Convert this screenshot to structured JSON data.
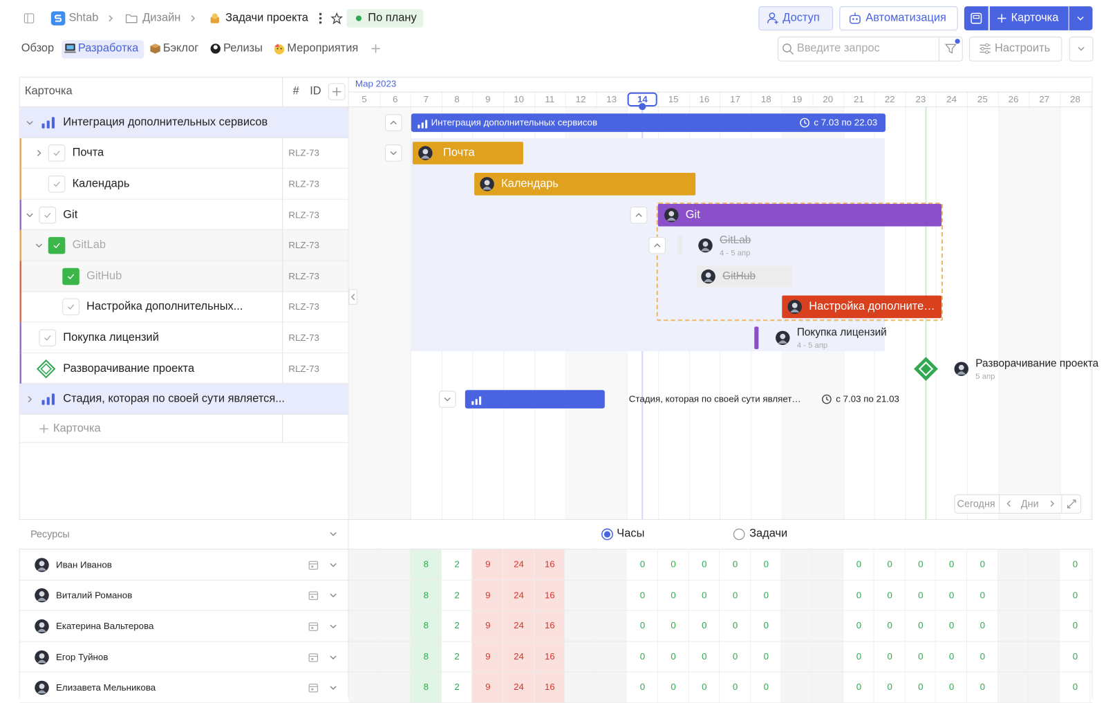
{
  "header": {
    "breadcrumbs": [
      "Shtab",
      "Дизайн",
      "Задачи проекта"
    ],
    "status": "По плану",
    "buttons": {
      "access": "Доступ",
      "automation": "Автоматизация",
      "card": "Карточка"
    }
  },
  "tabs": [
    "Обзор",
    "Разработка",
    "Бэклог",
    "Релизы",
    "Мероприятия"
  ],
  "search_placeholder": "Введите запрос",
  "configure": "Настроить",
  "table": {
    "columns": [
      "Карточка",
      "#",
      "ID"
    ],
    "rows": [
      {
        "title": "Интеграция дополнительных сервисов"
      },
      {
        "title": "Почта",
        "id": "RLZ-73"
      },
      {
        "title": "Календарь",
        "id": "RLZ-73"
      },
      {
        "title": "Git",
        "id": "RLZ-73"
      },
      {
        "title": "GitLab",
        "id": "RLZ-73"
      },
      {
        "title": "GitHub",
        "id": "RLZ-73"
      },
      {
        "title": "Настройка дополнительных...",
        "id": "RLZ-73"
      },
      {
        "title": "Покупка лицензий",
        "id": "RLZ-73"
      },
      {
        "title": "Разворачивание проекта",
        "id": "RLZ-73"
      },
      {
        "title": "Стадия, которая по своей сути является..."
      }
    ],
    "add_card": "Карточка"
  },
  "timeline": {
    "month": "Мар 2023",
    "days": [
      5,
      6,
      7,
      8,
      9,
      10,
      11,
      12,
      13,
      14,
      15,
      16,
      17,
      18,
      19,
      20,
      21,
      22,
      23,
      24,
      25,
      26,
      27,
      28
    ],
    "bars": [
      {
        "title": "Интеграция дополнительных сервисов",
        "dates": "с 7.03 по 22.03"
      },
      {
        "title": "Почта"
      },
      {
        "title": "Календарь"
      },
      {
        "title": "Git"
      },
      {
        "title": "GitLab",
        "dates": "4 - 5 апр"
      },
      {
        "title": "GitHub"
      },
      {
        "title": "Настройка дополните…"
      },
      {
        "title": "Покупка лицензий",
        "dates": "4 - 5 апр"
      },
      {
        "title": "Разворачивание проекта",
        "dates": "5 апр"
      },
      {
        "title": "Стадия, которая по своей сути являет…",
        "dates": "с 7.03 по 21.03"
      }
    ],
    "controls": {
      "today": "Сегодня",
      "scale": "Дни"
    }
  },
  "resources": {
    "title": "Ресурсы",
    "modes": [
      "Часы",
      "Задачи"
    ],
    "people": [
      {
        "name": "Иван Иванов",
        "hours": [
          null,
          null,
          8,
          2,
          9,
          24,
          16,
          null,
          null,
          0,
          0,
          0,
          0,
          0,
          null,
          null,
          0,
          0,
          0,
          0,
          0,
          null,
          null,
          0
        ]
      },
      {
        "name": "Виталий Романов",
        "hours": [
          null,
          null,
          8,
          2,
          9,
          24,
          16,
          null,
          null,
          0,
          0,
          0,
          0,
          0,
          null,
          null,
          0,
          0,
          0,
          0,
          0,
          null,
          null,
          0
        ]
      },
      {
        "name": "Екатерина Вальтерова",
        "hours": [
          null,
          null,
          8,
          2,
          9,
          24,
          16,
          null,
          null,
          0,
          0,
          0,
          0,
          0,
          null,
          null,
          0,
          0,
          0,
          0,
          0,
          null,
          null,
          0
        ]
      },
      {
        "name": "Егор Туйнов",
        "hours": [
          null,
          null,
          8,
          2,
          9,
          24,
          16,
          null,
          null,
          0,
          0,
          0,
          0,
          0,
          null,
          null,
          0,
          0,
          0,
          0,
          0,
          null,
          null,
          0
        ]
      },
      {
        "name": "Елизавета Мельникова",
        "hours": [
          null,
          null,
          8,
          2,
          9,
          24,
          16,
          null,
          null,
          0,
          0,
          0,
          0,
          0,
          null,
          null,
          0,
          0,
          0,
          0,
          0,
          null,
          null,
          0
        ]
      }
    ]
  }
}
